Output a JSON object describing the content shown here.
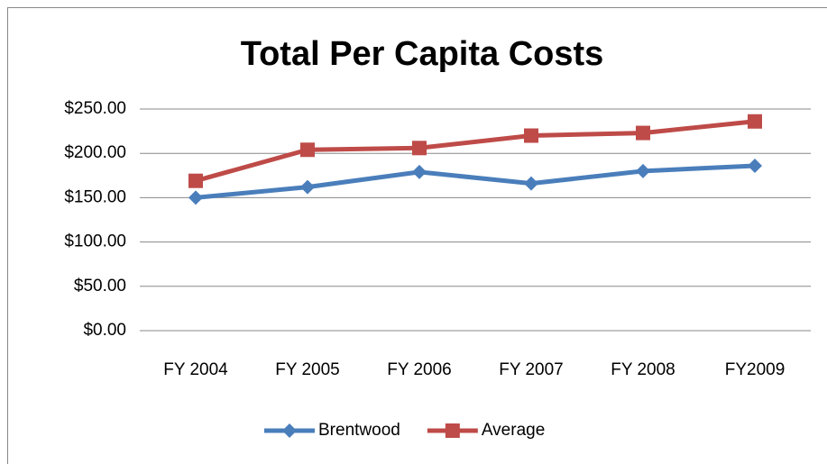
{
  "chart_data": {
    "type": "line",
    "title": "Total Per Capita Costs",
    "categories": [
      "FY 2004",
      "FY 2005",
      "FY 2006",
      "FY 2007",
      "FY 2008",
      "FY2009"
    ],
    "series": [
      {
        "name": "Brentwood",
        "color": "#4a7ebb",
        "marker": "diamond",
        "values": [
          150,
          162,
          179,
          166,
          180,
          186
        ]
      },
      {
        "name": "Average",
        "color": "#be4b48",
        "marker": "square",
        "values": [
          169,
          204,
          206,
          220,
          223,
          236
        ]
      }
    ],
    "ylim": [
      0,
      250
    ],
    "yticks": [
      {
        "value": 0,
        "label": "$0.00"
      },
      {
        "value": 50,
        "label": "$50.00"
      },
      {
        "value": 100,
        "label": "$100.00"
      },
      {
        "value": 150,
        "label": "$150.00"
      },
      {
        "value": 200,
        "label": "$200.00"
      },
      {
        "value": 250,
        "label": "$250.00"
      }
    ],
    "grid": true,
    "legend": "bottom"
  }
}
